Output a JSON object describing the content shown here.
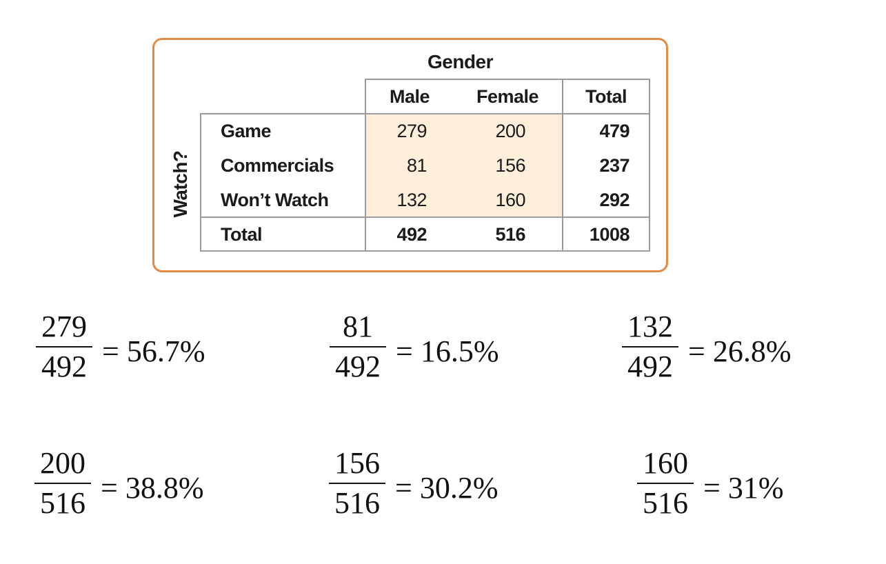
{
  "table": {
    "column_group_header": "Gender",
    "row_group_header": "Watch?",
    "columns": [
      "Male",
      "Female",
      "Total"
    ],
    "rows": [
      {
        "label": "Game",
        "male": "279",
        "female": "200",
        "total": "479"
      },
      {
        "label": "Commercials",
        "male": "81",
        "female": "156",
        "total": "237"
      },
      {
        "label": "Won’t Watch",
        "male": "132",
        "female": "160",
        "total": "292"
      }
    ],
    "total_row": {
      "label": "Total",
      "male": "492",
      "female": "516",
      "total": "1008"
    }
  },
  "calculations": [
    {
      "numerator": "279",
      "denominator": "492",
      "result": "= 56.7%"
    },
    {
      "numerator": "81",
      "denominator": "492",
      "result": "= 16.5%"
    },
    {
      "numerator": "132",
      "denominator": "492",
      "result": "= 26.8%"
    },
    {
      "numerator": "200",
      "denominator": "516",
      "result": "= 38.8%"
    },
    {
      "numerator": "156",
      "denominator": "516",
      "result": "= 30.2%"
    },
    {
      "numerator": "160",
      "denominator": "516",
      "result": "= 31%"
    }
  ],
  "colors": {
    "card_border": "#e58a43",
    "data_cell_fill": "#fdeed9",
    "grid_line": "#9a9a9a"
  }
}
